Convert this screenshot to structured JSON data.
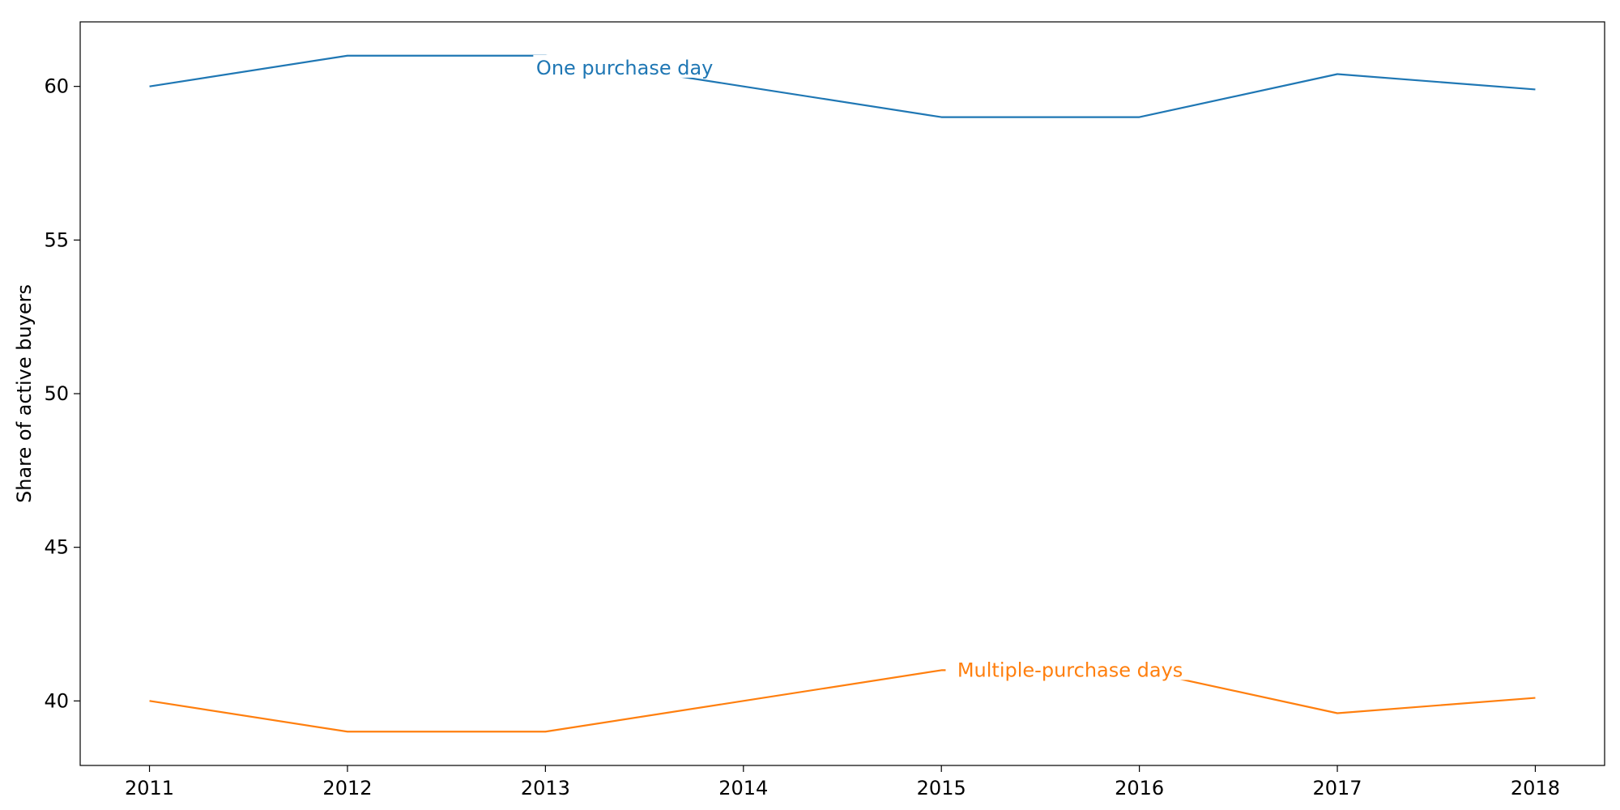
{
  "chart_data": {
    "type": "line",
    "title": "",
    "xlabel": "",
    "ylabel": "Share of active buyers",
    "x": [
      2011,
      2012,
      2013,
      2014,
      2015,
      2016,
      2017,
      2018
    ],
    "xticks": [
      "2011",
      "2012",
      "2013",
      "2014",
      "2015",
      "2016",
      "2017",
      "2018"
    ],
    "yticks": [
      "40",
      "45",
      "50",
      "55",
      "60"
    ],
    "ytick_values": [
      40,
      45,
      50,
      55,
      60
    ],
    "xlim": [
      2010.65,
      2018.35
    ],
    "ylim": [
      37.9,
      62.1
    ],
    "grid": false,
    "legend": "none",
    "series": [
      {
        "name": "One purchase day",
        "color": "#1f77b4",
        "values": [
          60.0,
          61.0,
          61.0,
          60.0,
          59.0,
          59.0,
          60.4,
          59.9
        ],
        "label_anchor_x": 2013.4
      },
      {
        "name": "Multiple-purchase days",
        "color": "#ff7f0e",
        "values": [
          40.0,
          39.0,
          39.0,
          40.0,
          41.0,
          41.0,
          39.6,
          40.1
        ],
        "label_anchor_x": 2015.65
      }
    ]
  }
}
